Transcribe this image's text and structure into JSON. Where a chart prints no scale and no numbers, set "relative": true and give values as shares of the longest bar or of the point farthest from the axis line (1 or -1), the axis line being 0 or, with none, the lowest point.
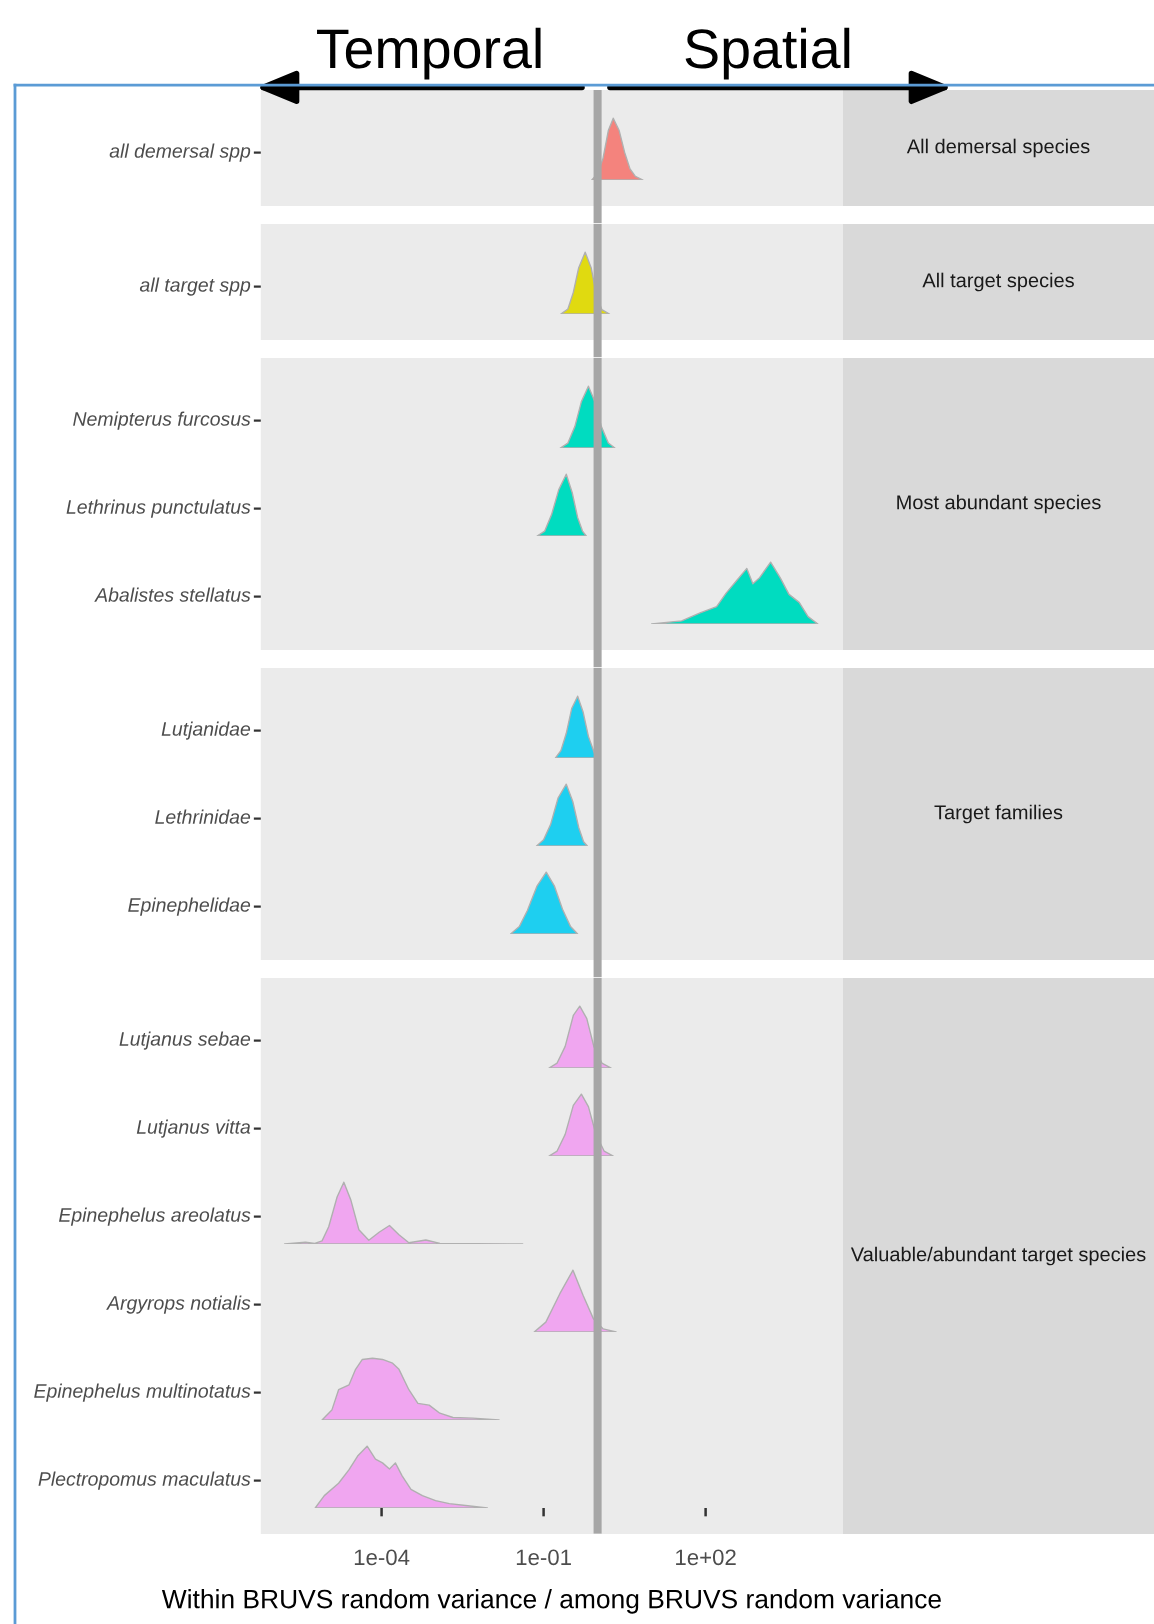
{
  "chart_data": [
    {
      "type": "area",
      "ylabel": "all demersal spp",
      "relative": true,
      "log": "x",
      "xlim": [
        5.8e-07,
        35000
      ],
      "tick_labels": false,
      "ref_lines": [
        {
          "axis": "x",
          "value": 1,
          "color": "#a6a6a6"
        }
      ],
      "annotations": [
        "All demersal species",
        "Temporal",
        "Spatial"
      ],
      "color": "#f4837d",
      "x": [
        0.78,
        1.0,
        1.26,
        1.58,
        1.95,
        2.51,
        3.16,
        3.98,
        5.01,
        6.92
      ],
      "values": [
        0,
        0.1,
        0.35,
        0.8,
        1,
        0.8,
        0.45,
        0.18,
        0.06,
        0
      ]
    },
    {
      "type": "area",
      "ylabel": "all target spp",
      "relative": true,
      "log": "x",
      "xlim": [
        5.8e-07,
        35000
      ],
      "tick_labels": false,
      "ref_lines": [
        {
          "axis": "x",
          "value": 1,
          "color": "#a6a6a6"
        }
      ],
      "annotations": [
        "All target species"
      ],
      "color": "#e0da10",
      "x": [
        0.209,
        0.282,
        0.355,
        0.447,
        0.589,
        0.759,
        0.955,
        1.2,
        1.66
      ],
      "values": [
        0,
        0.08,
        0.35,
        0.75,
        1,
        0.75,
        0.3,
        0.07,
        0
      ]
    },
    {
      "type": "area",
      "ylabel": "Nemipterus furcosus",
      "relative": true,
      "log": "x",
      "xlim": [
        5.8e-07,
        35000
      ],
      "tick_labels": false,
      "ref_lines": [
        {
          "axis": "x",
          "value": 1,
          "color": "#a6a6a6"
        }
      ],
      "annotations": [
        "Most abundant species"
      ],
      "color": "#00dcc0",
      "x": [
        0.204,
        0.282,
        0.38,
        0.501,
        0.676,
        0.891,
        1.17,
        1.58,
        2.09
      ],
      "values": [
        0,
        0.08,
        0.35,
        0.75,
        1,
        0.75,
        0.35,
        0.08,
        0
      ]
    },
    {
      "type": "area",
      "ylabel": "Lethrinus punctulatus",
      "relative": true,
      "log": "x",
      "xlim": [
        5.8e-07,
        35000
      ],
      "tick_labels": false,
      "ref_lines": [
        {
          "axis": "x",
          "value": 1,
          "color": "#a6a6a6"
        }
      ],
      "color": "#00dcc0",
      "x": [
        0.0759,
        0.105,
        0.141,
        0.191,
        0.263,
        0.339,
        0.427,
        0.525,
        0.617
      ],
      "values": [
        0,
        0.08,
        0.35,
        0.75,
        1,
        0.7,
        0.3,
        0.08,
        0
      ]
    },
    {
      "type": "area",
      "ylabel": "Abalistes stellatus",
      "relative": true,
      "log": "x",
      "xlim": [
        5.8e-07,
        35000
      ],
      "tick_labels": false,
      "ref_lines": [
        {
          "axis": "x",
          "value": 1,
          "color": "#a6a6a6"
        }
      ],
      "color": "#00dcc0",
      "x": [
        10,
        36,
        79,
        160,
        240,
        390,
        580,
        750,
        1000,
        1600,
        2400,
        3500,
        5400,
        7900,
        12000
      ],
      "values": [
        0,
        0.05,
        0.18,
        0.28,
        0.5,
        0.72,
        0.9,
        0.65,
        0.75,
        1,
        0.75,
        0.48,
        0.35,
        0.12,
        0
      ]
    },
    {
      "type": "area",
      "ylabel": "Lutjanidae",
      "relative": true,
      "log": "x",
      "xlim": [
        5.8e-07,
        35000
      ],
      "tick_labels": false,
      "ref_lines": [
        {
          "axis": "x",
          "value": 1,
          "color": "#a6a6a6"
        }
      ],
      "annotations": [
        "Target families"
      ],
      "color": "#1ecff0",
      "x": [
        0.166,
        0.209,
        0.263,
        0.331,
        0.427,
        0.537,
        0.676,
        0.871,
        1.1
      ],
      "values": [
        0,
        0.12,
        0.4,
        0.8,
        1,
        0.75,
        0.35,
        0.08,
        0
      ]
    },
    {
      "type": "area",
      "ylabel": "Lethrinidae",
      "relative": true,
      "log": "x",
      "xlim": [
        5.8e-07,
        35000
      ],
      "tick_labels": false,
      "ref_lines": [
        {
          "axis": "x",
          "value": 1,
          "color": "#a6a6a6"
        }
      ],
      "color": "#1ecff0",
      "x": [
        0.0741,
        0.1,
        0.135,
        0.186,
        0.263,
        0.347,
        0.447,
        0.55,
        0.646
      ],
      "values": [
        0,
        0.1,
        0.35,
        0.78,
        1,
        0.72,
        0.3,
        0.07,
        0
      ]
    },
    {
      "type": "area",
      "ylabel": "Epinephelidae",
      "relative": true,
      "log": "x",
      "xlim": [
        5.8e-07,
        35000
      ],
      "tick_labels": false,
      "ref_lines": [
        {
          "axis": "x",
          "value": 1,
          "color": "#a6a6a6"
        }
      ],
      "color": "#1ecff0",
      "x": [
        0.0245,
        0.0355,
        0.0501,
        0.0759,
        0.112,
        0.158,
        0.224,
        0.316,
        0.427
      ],
      "values": [
        0,
        0.12,
        0.38,
        0.78,
        1,
        0.78,
        0.4,
        0.12,
        0
      ]
    },
    {
      "type": "area",
      "ylabel": "Lutjanus sebae",
      "relative": true,
      "log": "x",
      "xlim": [
        5.8e-07,
        35000
      ],
      "tick_labels": false,
      "ref_lines": [
        {
          "axis": "x",
          "value": 1,
          "color": "#a6a6a6"
        }
      ],
      "annotations": [
        "Valuable/abundant target species"
      ],
      "color": "#f0a6f0",
      "x": [
        0.126,
        0.178,
        0.251,
        0.355,
        0.468,
        0.631,
        0.851,
        1.2,
        1.78
      ],
      "values": [
        0,
        0.08,
        0.35,
        0.85,
        1,
        0.8,
        0.35,
        0.08,
        0
      ]
    },
    {
      "type": "area",
      "ylabel": "Lutjanus vitta",
      "relative": true,
      "log": "x",
      "xlim": [
        5.8e-07,
        35000
      ],
      "tick_labels": false,
      "ref_lines": [
        {
          "axis": "x",
          "value": 1,
          "color": "#a6a6a6"
        }
      ],
      "color": "#f0a6f0",
      "x": [
        0.126,
        0.178,
        0.251,
        0.355,
        0.501,
        0.676,
        0.933,
        1.32,
        1.95
      ],
      "values": [
        0,
        0.08,
        0.35,
        0.82,
        1,
        0.8,
        0.35,
        0.08,
        0
      ]
    },
    {
      "type": "area",
      "ylabel": "Epinephelus areolatus",
      "relative": true,
      "log": "x",
      "xlim": [
        5.8e-07,
        35000
      ],
      "tick_labels": false,
      "ref_lines": [
        {
          "axis": "x",
          "value": 1,
          "color": "#a6a6a6"
        }
      ],
      "color": "#f0a6f0",
      "x": [
        1.6e-06,
        3.9e-06,
        5.8e-06,
        7.9e-06,
        1.05e-05,
        1.5e-05,
        2e-05,
        2.7e-05,
        3.8e-05,
        5.8e-05,
        9e-05,
        0.00014,
        0.00021,
        0.00032,
        0.00066,
        0.0012,
        0.041
      ],
      "values": [
        0,
        0.03,
        0.01,
        0.05,
        0.28,
        0.76,
        1,
        0.71,
        0.23,
        0.06,
        0.19,
        0.3,
        0.15,
        0.02,
        0.065,
        0.01,
        0
      ]
    },
    {
      "type": "area",
      "ylabel": "Argyrops notialis",
      "relative": true,
      "log": "x",
      "xlim": [
        5.8e-07,
        35000
      ],
      "tick_labels": false,
      "ref_lines": [
        {
          "axis": "x",
          "value": 1,
          "color": "#a6a6a6"
        }
      ],
      "color": "#f0a6f0",
      "x": [
        0.067,
        0.11,
        0.2,
        0.35,
        0.54,
        0.83,
        1.27,
        2.2
      ],
      "values": [
        0,
        0.16,
        0.62,
        1,
        0.59,
        0.22,
        0.05,
        0
      ]
    },
    {
      "type": "area",
      "ylabel": "Epinephelus multinotatus",
      "relative": true,
      "log": "x",
      "xlim": [
        5.8e-07,
        35000
      ],
      "tick_labels": false,
      "ref_lines": [
        {
          "axis": "x",
          "value": 1,
          "color": "#a6a6a6"
        }
      ],
      "color": "#f0a6f0",
      "x": [
        7.9e-06,
        1.2e-05,
        1.6e-05,
        2.5e-05,
        3.3e-05,
        4.4e-05,
        6.8e-05,
        0.000104,
        0.00016,
        0.00021,
        0.00032,
        0.00047,
        0.00076,
        0.0012,
        0.0021,
        0.0049,
        0.015
      ],
      "values": [
        0,
        0.16,
        0.49,
        0.57,
        0.82,
        0.98,
        1,
        0.98,
        0.92,
        0.82,
        0.49,
        0.27,
        0.24,
        0.11,
        0.04,
        0.03,
        0
      ]
    },
    {
      "type": "area",
      "ylabel": "Plectropomus maculatus",
      "relative": true,
      "log": "x",
      "xlim": [
        5.8e-07,
        35000
      ],
      "xticks": [
        {
          "value": 0.0001,
          "label": "1e-04"
        },
        {
          "value": 0.1,
          "label": "1e-01"
        },
        {
          "value": 100,
          "label": "1e+02"
        }
      ],
      "tick_labels": "x",
      "xlabel": "Within BRUVS random variance / among BRUVS random variance",
      "ref_lines": [
        {
          "axis": "x",
          "value": 1,
          "color": "#a6a6a6"
        }
      ],
      "color": "#f0a6f0",
      "x": [
        5.9e-06,
        8.7e-06,
        1.6e-05,
        2.5e-05,
        3.6e-05,
        5.4e-05,
        7.7e-05,
        0.000104,
        0.00014,
        0.00018,
        0.00024,
        0.00035,
        0.00057,
        0.001,
        0.0018,
        0.0036,
        0.0091
      ],
      "values": [
        0,
        0.2,
        0.4,
        0.62,
        0.84,
        1,
        0.79,
        0.73,
        0.63,
        0.73,
        0.52,
        0.3,
        0.2,
        0.12,
        0.07,
        0.04,
        0
      ]
    }
  ]
}
